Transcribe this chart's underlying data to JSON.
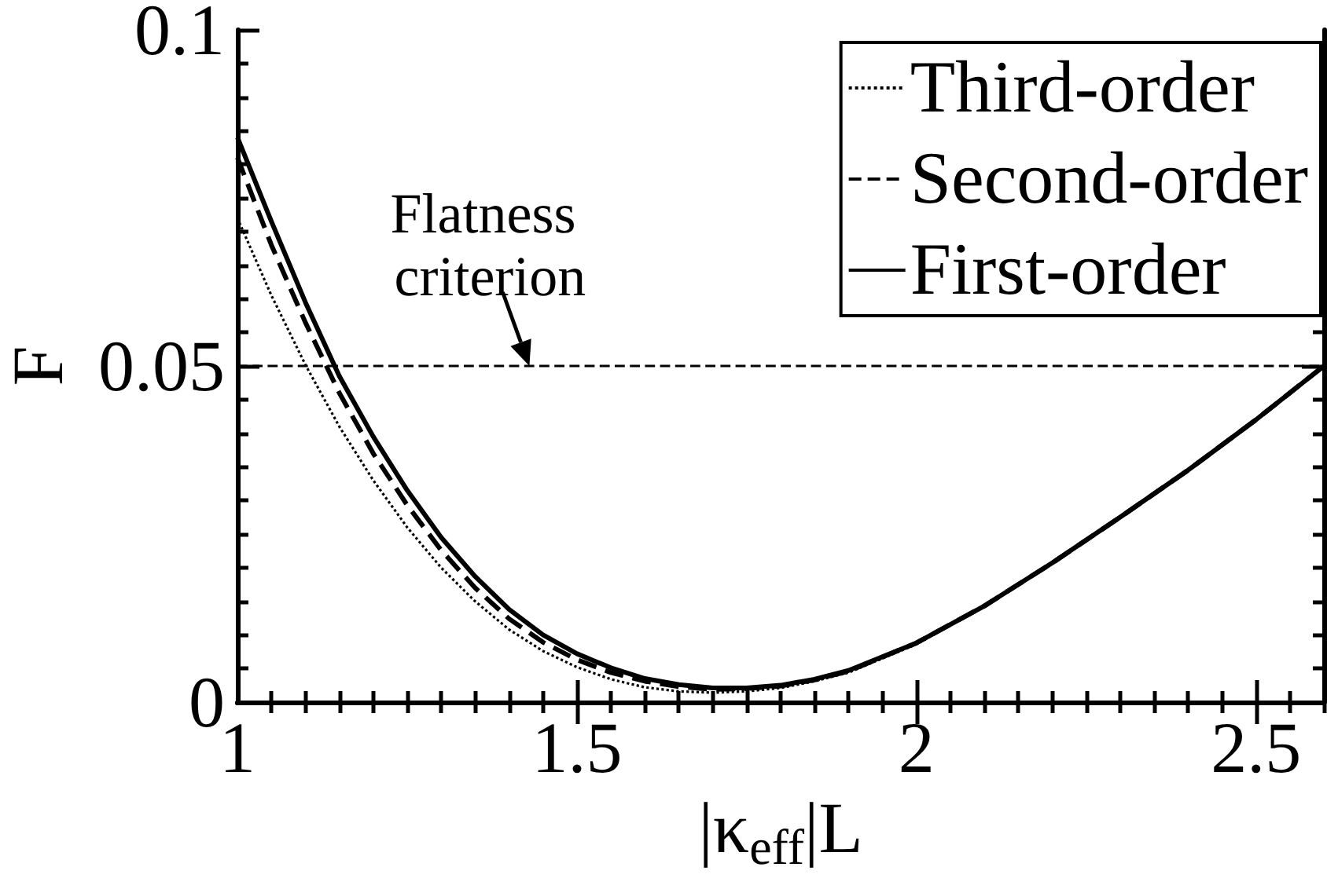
{
  "chart_data": {
    "type": "line",
    "xlabel": "|κ$_{eff}$|L",
    "ylabel": "F",
    "x": [
      1,
      1.05,
      1.1,
      1.15,
      1.2,
      1.25,
      1.3,
      1.35,
      1.4,
      1.45,
      1.5,
      1.55,
      1.6,
      1.65,
      1.7,
      1.75,
      1.8,
      1.85,
      1.9,
      2,
      2.1,
      2.2,
      2.3,
      2.4,
      2.5,
      2.6
    ],
    "series": [
      {
        "name": "Third-order",
        "color": "#000000",
        "line_style": "dotted",
        "values": [
          0.072,
          0.0605,
          0.0502,
          0.041,
          0.033,
          0.026,
          0.02,
          0.015,
          0.0108,
          0.0076,
          0.0052,
          0.0034,
          0.0022,
          0.0016,
          0.0014,
          0.0016,
          0.0021,
          0.0031,
          0.0044,
          0.0086,
          0.0143,
          0.0207,
          0.0275,
          0.0345,
          0.042,
          0.05
        ]
      },
      {
        "name": "Second-order",
        "color": "#000000",
        "line_style": "dashed",
        "values": [
          0.081,
          0.068,
          0.0565,
          0.046,
          0.037,
          0.0293,
          0.0226,
          0.017,
          0.0124,
          0.0089,
          0.0063,
          0.0044,
          0.0031,
          0.0023,
          0.0019,
          0.002,
          0.0024,
          0.0033,
          0.0046,
          0.0088,
          0.0143,
          0.0207,
          0.0275,
          0.0345,
          0.042,
          0.05
        ]
      },
      {
        "name": "First-order",
        "color": "#000000",
        "line_style": "solid",
        "values": [
          0.084,
          0.0715,
          0.0595,
          0.0485,
          0.0395,
          0.0315,
          0.0245,
          0.0187,
          0.0138,
          0.01,
          0.0072,
          0.0051,
          0.0035,
          0.0026,
          0.0021,
          0.0021,
          0.0025,
          0.0034,
          0.0047,
          0.0088,
          0.0143,
          0.0207,
          0.0275,
          0.0345,
          0.042,
          0.05
        ]
      }
    ],
    "xlim": [
      1,
      2.6
    ],
    "ylim": [
      0,
      0.1
    ],
    "xticks": [
      1,
      1.5,
      2,
      2.5
    ],
    "yticks": [
      0,
      0.05,
      0.1
    ],
    "ref_lines": [
      {
        "axis": "y",
        "value": 0.05,
        "color": "#000000",
        "line_style": "dashed"
      }
    ],
    "annotations": [
      {
        "text": "Flatness criterion",
        "x": 1.43,
        "y": 0.05
      }
    ],
    "legend": "top right"
  }
}
